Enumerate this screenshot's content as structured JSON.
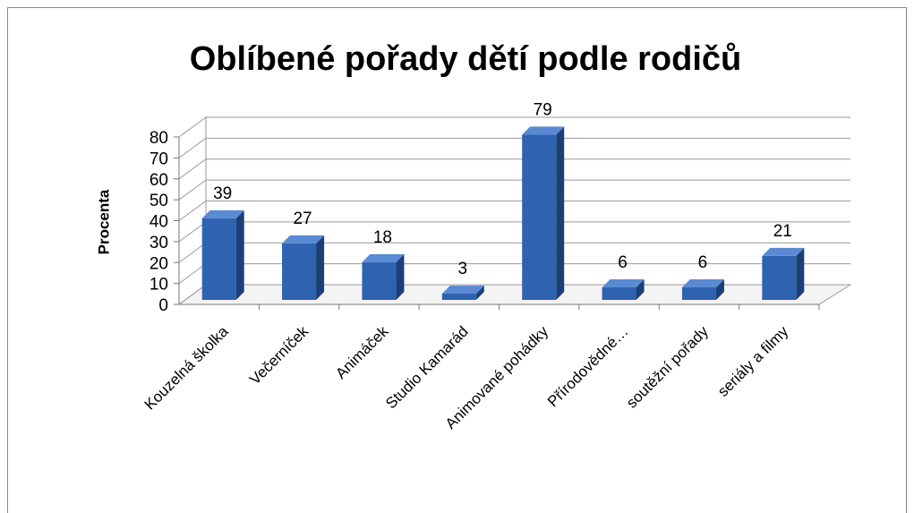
{
  "chart_data": {
    "type": "bar",
    "title": "Oblíbené pořady dětí podle rodičů",
    "y_label": "Procenta",
    "categories": [
      "Kouzelná školka",
      "Večerníček",
      "Animáček",
      "Studio Kamarád",
      "Animované pohádky",
      "Přírodovědné…",
      "soutěžní pořady",
      "seriály a filmy"
    ],
    "values": [
      39,
      27,
      18,
      3,
      79,
      6,
      6,
      21
    ],
    "color": "#2f63b0",
    "ylim": [
      0,
      80
    ],
    "yticks": [
      0,
      10,
      20,
      30,
      40,
      50,
      60,
      70,
      80
    ],
    "grid": true
  }
}
